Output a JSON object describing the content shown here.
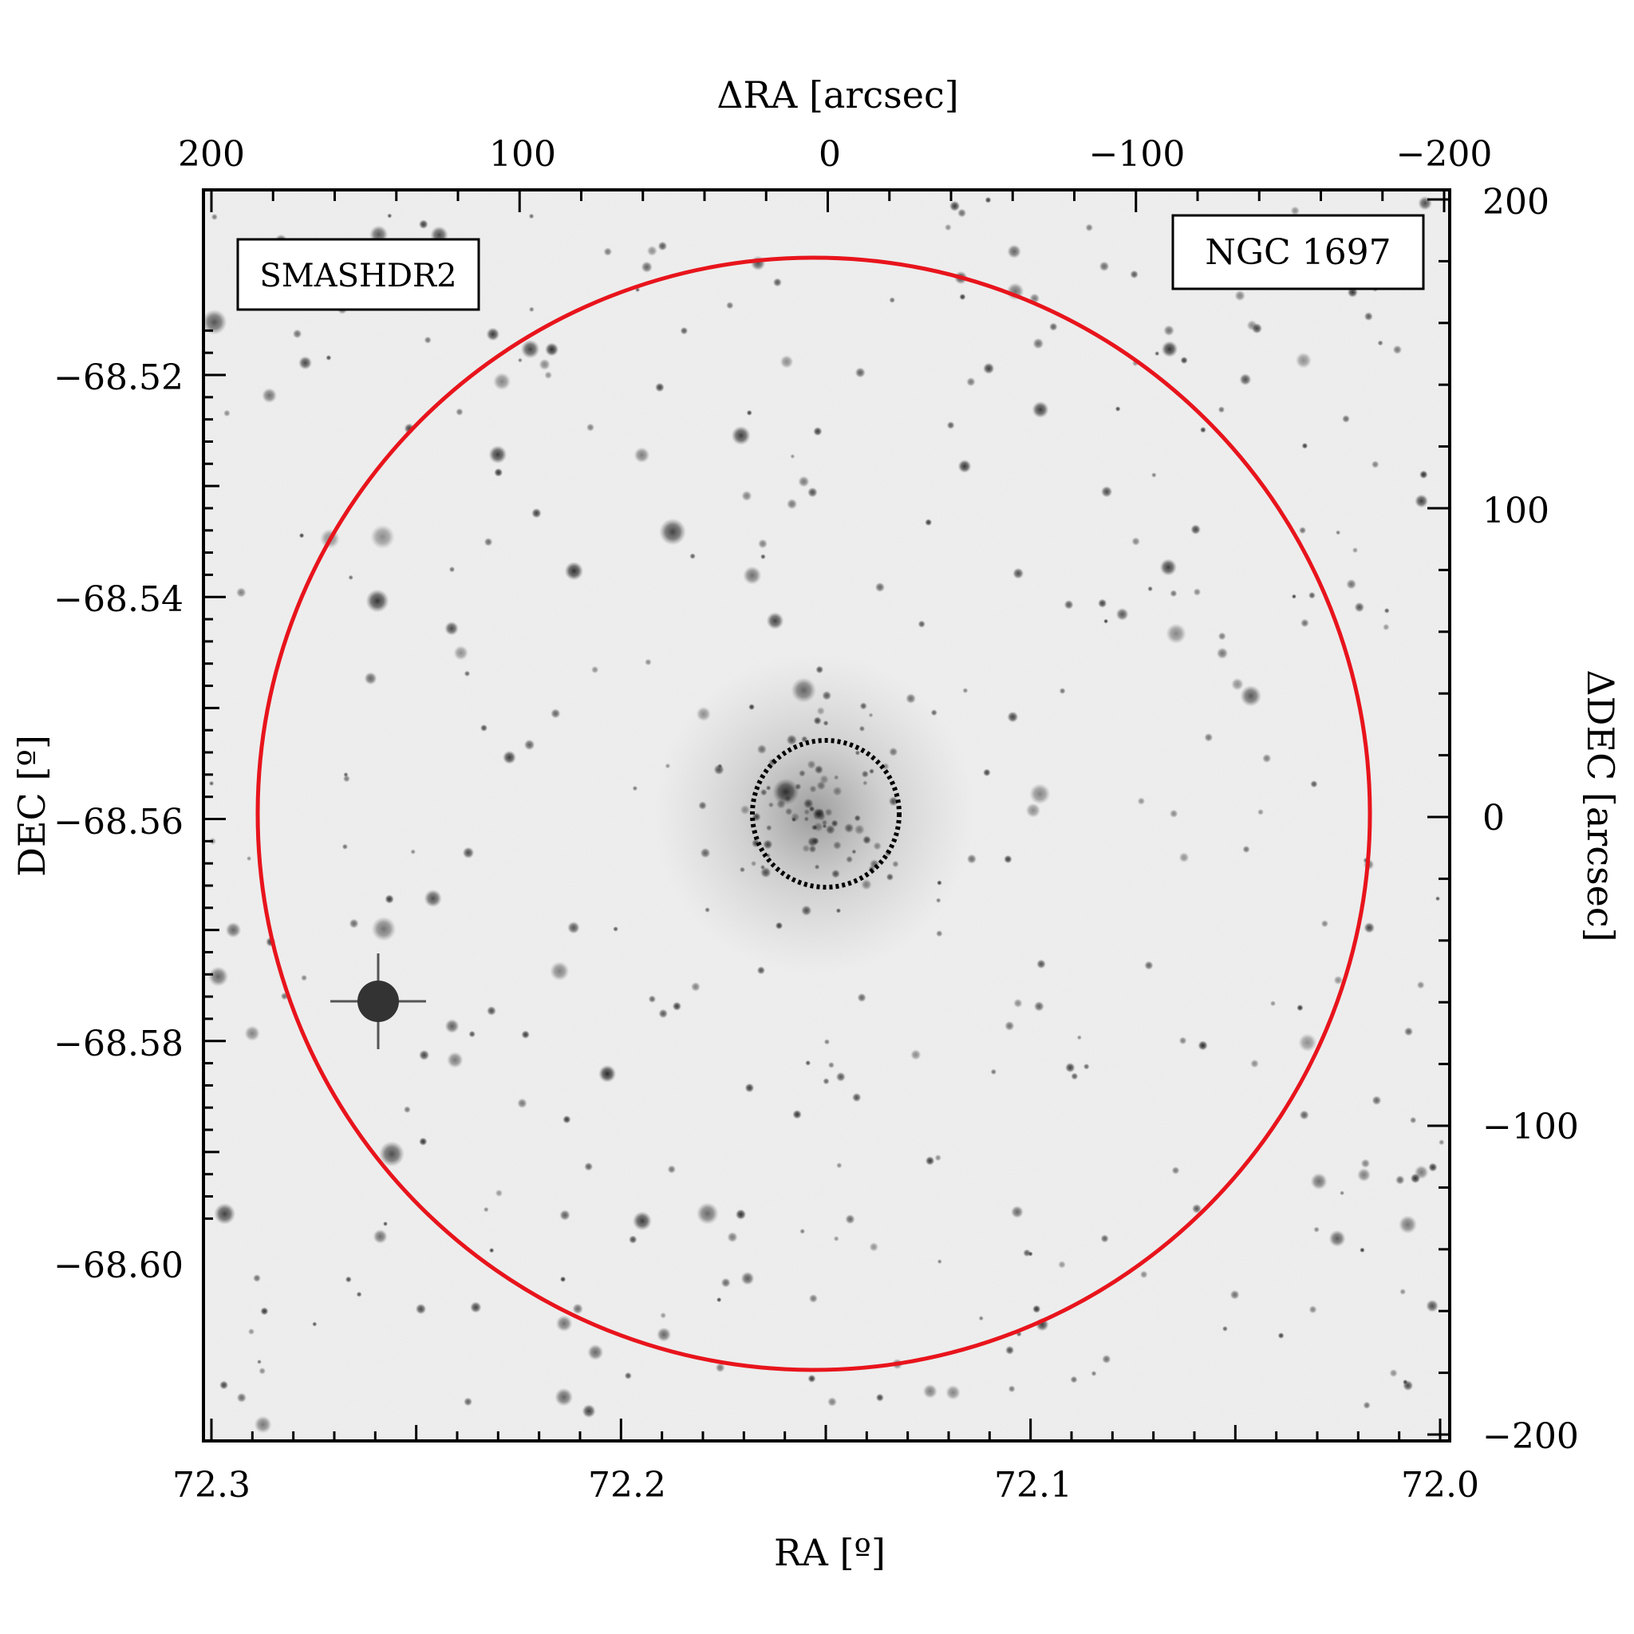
{
  "figure": {
    "survey_label": "SMASHDR2",
    "object_label": "NGC 1697",
    "colors": {
      "outer_circle": "#e8141c",
      "survey_label": "#e8141c",
      "inner_circle": "#000000",
      "frame": "#000000",
      "sky_background": "#f1f1f1",
      "stars": "#2a2a2a"
    },
    "axes": {
      "bottom": {
        "label": "RA [º]",
        "range": [
          72.3,
          72.0
        ],
        "ticks": [
          "72.3",
          "72.2",
          "72.1",
          "72.0"
        ]
      },
      "left": {
        "label": "DEC [º]",
        "range": [
          -68.615,
          -68.505
        ],
        "ticks": [
          "−68.52",
          "−68.54",
          "−68.56",
          "−68.58",
          "−68.60"
        ]
      },
      "top": {
        "label": "ΔRA [arcsec]",
        "range": [
          200,
          -200
        ],
        "ticks": [
          "200",
          "100",
          "0",
          "−100",
          "−200"
        ]
      },
      "right": {
        "label": "ΔDEC [arcsec]",
        "range": [
          -200,
          200
        ],
        "ticks": [
          "200",
          "100",
          "0",
          "−100",
          "−200"
        ]
      }
    },
    "regions": {
      "outer_circle_radius_arcsec": 180,
      "inner_circle_radius_arcsec": 24,
      "center_offset_arcsec": [
        4,
        0
      ]
    }
  }
}
